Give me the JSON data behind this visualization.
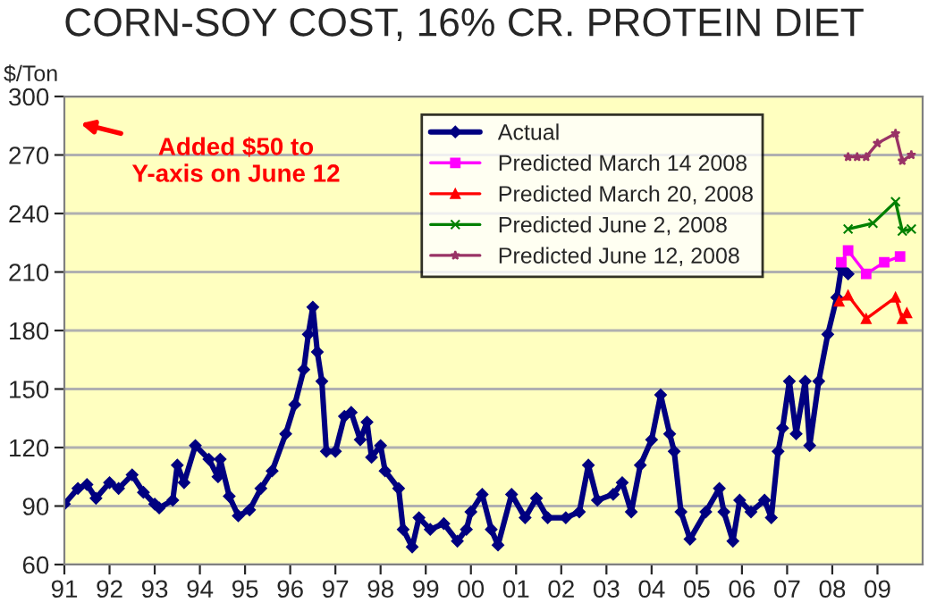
{
  "chart_data": {
    "type": "line",
    "title": "CORN-SOY COST, 16% CR. PROTEIN DIET",
    "ylabel": "$/Ton",
    "xlim": [
      1991,
      2010
    ],
    "xticks": [
      {
        "value": 1991,
        "label": "91"
      },
      {
        "value": 1992,
        "label": "92"
      },
      {
        "value": 1993,
        "label": "93"
      },
      {
        "value": 1994,
        "label": "94"
      },
      {
        "value": 1995,
        "label": "95"
      },
      {
        "value": 1996,
        "label": "96"
      },
      {
        "value": 1997,
        "label": "97"
      },
      {
        "value": 1998,
        "label": "98"
      },
      {
        "value": 1999,
        "label": "99"
      },
      {
        "value": 2000,
        "label": "00"
      },
      {
        "value": 2001,
        "label": "01"
      },
      {
        "value": 2002,
        "label": "02"
      },
      {
        "value": 2003,
        "label": "03"
      },
      {
        "value": 2004,
        "label": "04"
      },
      {
        "value": 2005,
        "label": "05"
      },
      {
        "value": 2006,
        "label": "06"
      },
      {
        "value": 2007,
        "label": "07"
      },
      {
        "value": 2008,
        "label": "08"
      },
      {
        "value": 2009,
        "label": "09"
      }
    ],
    "ylim": [
      60,
      300
    ],
    "yticks": [
      60,
      90,
      120,
      150,
      180,
      210,
      240,
      270,
      300
    ],
    "grid": "y",
    "legend": "top",
    "annotations": [
      "Added $50 to\nY-axis on June 12"
    ],
    "series": [
      {
        "name": "Actual",
        "color": "#000080",
        "marker": "diamond",
        "x": [
          1991.0,
          1991.3,
          1991.5,
          1991.7,
          1992.0,
          1992.2,
          1992.5,
          1992.75,
          1993.0,
          1993.1,
          1993.4,
          1993.5,
          1993.65,
          1993.9,
          1994.2,
          1994.4,
          1994.45,
          1994.65,
          1994.85,
          1995.1,
          1995.35,
          1995.6,
          1995.9,
          1996.1,
          1996.3,
          1996.4,
          1996.5,
          1996.6,
          1996.7,
          1996.8,
          1997.0,
          1997.2,
          1997.35,
          1997.55,
          1997.7,
          1997.8,
          1998.0,
          1998.1,
          1998.4,
          1998.5,
          1998.7,
          1998.85,
          1999.1,
          1999.4,
          1999.7,
          1999.9,
          2000.0,
          2000.25,
          2000.45,
          2000.6,
          2000.9,
          2001.2,
          2001.45,
          2001.7,
          2002.1,
          2002.4,
          2002.6,
          2002.8,
          2003.15,
          2003.35,
          2003.55,
          2003.75,
          2004.0,
          2004.2,
          2004.4,
          2004.5,
          2004.65,
          2004.85,
          2005.2,
          2005.5,
          2005.6,
          2005.8,
          2005.95,
          2006.2,
          2006.5,
          2006.65,
          2006.8,
          2006.9,
          2007.05,
          2007.2,
          2007.4,
          2007.5,
          2007.7,
          2007.9,
          2008.1,
          2008.2,
          2008.35
        ],
        "values": [
          91,
          99,
          101,
          94,
          102,
          99,
          106,
          97,
          91,
          89,
          93,
          111,
          102,
          121,
          114,
          105,
          114,
          95,
          85,
          88,
          99,
          108,
          127,
          142,
          160,
          178,
          192,
          169,
          154,
          118,
          118,
          136,
          138,
          124,
          133,
          115,
          121,
          108,
          99,
          78,
          69,
          84,
          78,
          81,
          72,
          78,
          87,
          96,
          78,
          70,
          96,
          84,
          94,
          84,
          84,
          87,
          111,
          93,
          96,
          102,
          87,
          111,
          124,
          147,
          127,
          118,
          87,
          73,
          87,
          99,
          87,
          72,
          93,
          87,
          93,
          84,
          118,
          130,
          154,
          127,
          154,
          121,
          154,
          178,
          197,
          212,
          209
        ]
      },
      {
        "name": "Predicted March 14 2008",
        "color": "#ff00ff",
        "marker": "square",
        "x": [
          2008.2,
          2008.35,
          2008.75,
          2009.15,
          2009.5
        ],
        "values": [
          215,
          221,
          209,
          215,
          218
        ]
      },
      {
        "name": "Predicted March 20, 2008",
        "color": "#ff0000",
        "marker": "triangle",
        "x": [
          2008.15,
          2008.35,
          2008.75,
          2009.4,
          2009.55,
          2009.65
        ],
        "values": [
          195,
          198,
          186,
          197,
          186,
          189
        ]
      },
      {
        "name": "Predicted June 2, 2008",
        "color": "#008000",
        "marker": "cross",
        "x": [
          2008.35,
          2008.9,
          2009.4,
          2009.55,
          2009.75
        ],
        "values": [
          232,
          235,
          246,
          231,
          232
        ]
      },
      {
        "name": "Predicted June 12, 2008",
        "color": "#993366",
        "marker": "star",
        "x": [
          2008.35,
          2008.55,
          2008.75,
          2009.0,
          2009.4,
          2009.55,
          2009.75
        ],
        "values": [
          269,
          269,
          269,
          276,
          281,
          267,
          270
        ]
      }
    ]
  }
}
